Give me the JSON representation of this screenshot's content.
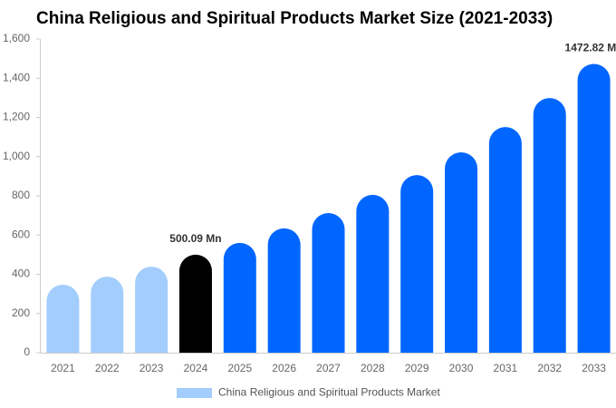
{
  "chart_data": {
    "type": "bar",
    "title": "China Religious and Spiritual Products Market Size (2021-2033)",
    "categories": [
      "2021",
      "2022",
      "2023",
      "2024",
      "2025",
      "2026",
      "2027",
      "2028",
      "2029",
      "2030",
      "2031",
      "2032",
      "2033"
    ],
    "series": [
      {
        "name": "China Religious and Spiritual Products Market",
        "color": "#a3cdfd",
        "values": [
          347,
          388,
          439,
          500.09,
          560,
          634,
          712,
          805,
          906,
          1022,
          1151,
          1299,
          1472.82
        ],
        "value_labels": [
          null,
          null,
          null,
          "500.09 Mn",
          null,
          null,
          null,
          null,
          null,
          null,
          null,
          null,
          "1472.82 Mn"
        ],
        "colors": [
          "#a3cdfd",
          "#a3cdfd",
          "#a3cdfd",
          "#000000",
          "#0066ff",
          "#0066ff",
          "#0066ff",
          "#0066ff",
          "#0066ff",
          "#0066ff",
          "#0066ff",
          "#0066ff",
          "#0066ff"
        ]
      }
    ],
    "ylim": [
      0,
      1600
    ],
    "yticks": [
      0,
      200,
      400,
      600,
      800,
      {
        "value": 1000,
        "label": "1,000"
      },
      {
        "value": 1200,
        "label": "1,200"
      },
      {
        "value": 1400,
        "label": "1,400"
      },
      {
        "value": 1600,
        "label": "1,600"
      }
    ],
    "grid": false
  }
}
